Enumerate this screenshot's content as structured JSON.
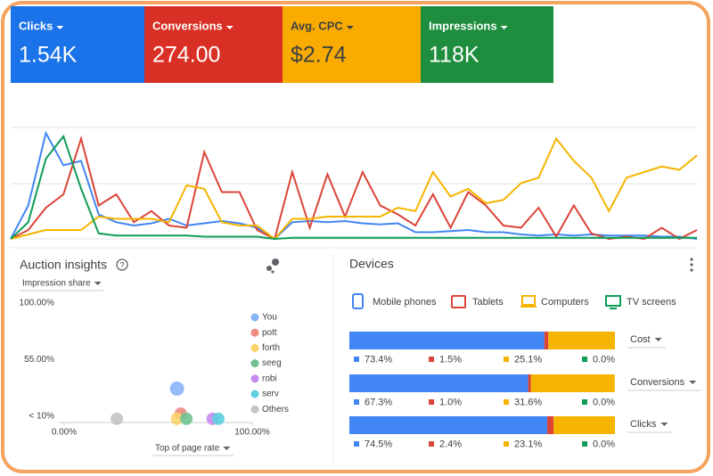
{
  "metrics": [
    {
      "label": "Clicks",
      "value": "1.54K",
      "color": "#1a73e8"
    },
    {
      "label": "Conversions",
      "value": "274.00",
      "color": "#d93025"
    },
    {
      "label": "Avg. CPC",
      "value": "$2.74",
      "color": "#f9ab00"
    },
    {
      "label": "Impressions",
      "value": "118K",
      "color": "#1e8e3e"
    }
  ],
  "trend": {
    "ylim": [
      0,
      100
    ],
    "series": [
      {
        "color": "#4285f4",
        "values": [
          0,
          30,
          95,
          66,
          70,
          22,
          15,
          12,
          14,
          18,
          12,
          14,
          16,
          14,
          10,
          0,
          15,
          16,
          15,
          16,
          14,
          13,
          14,
          6,
          6,
          7,
          8,
          6,
          6,
          4,
          3,
          4,
          3,
          4,
          3,
          3,
          3,
          2,
          2,
          0
        ]
      },
      {
        "color": "#db4437",
        "values": [
          0,
          8,
          28,
          40,
          90,
          30,
          40,
          15,
          25,
          12,
          10,
          78,
          42,
          42,
          8,
          0,
          60,
          10,
          58,
          20,
          60,
          30,
          22,
          12,
          40,
          10,
          42,
          30,
          12,
          10,
          28,
          2,
          30,
          5,
          0,
          2,
          0,
          10,
          0,
          8
        ]
      },
      {
        "color": "#f4b400",
        "values": [
          0,
          4,
          8,
          8,
          8,
          20,
          18,
          18,
          18,
          15,
          48,
          45,
          15,
          12,
          12,
          0,
          18,
          18,
          20,
          20,
          20,
          20,
          28,
          25,
          60,
          38,
          45,
          32,
          35,
          50,
          55,
          90,
          70,
          55,
          25,
          55,
          60,
          65,
          62,
          75
        ]
      },
      {
        "color": "#0f9d58",
        "values": [
          0,
          15,
          72,
          92,
          45,
          5,
          3,
          3,
          3,
          3,
          3,
          2,
          2,
          2,
          2,
          0,
          1,
          1,
          1,
          1,
          1,
          1,
          1,
          1,
          1,
          1,
          1,
          1,
          1,
          1,
          1,
          1,
          1,
          1,
          1,
          1,
          1,
          1,
          1,
          1
        ]
      }
    ]
  },
  "auction_insights": {
    "title": "Auction insights",
    "y_menu": "Impression share",
    "x_menu": "Top of page rate",
    "yticks": [
      {
        "value": 100,
        "label": "100.00%"
      },
      {
        "value": 55,
        "label": "55.00%"
      },
      {
        "value": 10,
        "label": "< 10%"
      }
    ],
    "xticks": [
      {
        "value": 0,
        "label": "0.00%"
      },
      {
        "value": 100,
        "label": "100.00%"
      }
    ],
    "series": [
      {
        "name": "You",
        "color": "#8ab4f8",
        "x": 60,
        "y": 32
      },
      {
        "name": "pott",
        "color": "#ee8a80",
        "x": 62,
        "y": 12
      },
      {
        "name": "forth",
        "color": "#fbd46d",
        "x": 60,
        "y": 8
      },
      {
        "name": "seeg",
        "color": "#6fc290",
        "x": 65,
        "y": 8
      },
      {
        "name": "robi",
        "color": "#c58af0",
        "x": 79,
        "y": 8
      },
      {
        "name": "serv",
        "color": "#5ecfe0",
        "x": 82,
        "y": 8
      },
      {
        "name": "Others",
        "color": "#c4c4c4",
        "x": 28,
        "y": 8
      }
    ]
  },
  "devices": {
    "title": "Devices",
    "legend": [
      {
        "name": "Mobile phones",
        "color": "#4285f4"
      },
      {
        "name": "Tablets",
        "color": "#db4437"
      },
      {
        "name": "Computers",
        "color": "#f4b400"
      },
      {
        "name": "TV screens",
        "color": "#0f9d58"
      }
    ],
    "rows": [
      {
        "menu": "Cost",
        "values": [
          73.4,
          1.5,
          25.1,
          0.0
        ],
        "value_labels": [
          "73.4%",
          "1.5%",
          "25.1%",
          "0.0%"
        ]
      },
      {
        "menu": "Conversions",
        "values": [
          67.3,
          1.0,
          31.6,
          0.0
        ],
        "value_labels": [
          "67.3%",
          "1.0%",
          "31.6%",
          "0.0%"
        ]
      },
      {
        "menu": "Clicks",
        "values": [
          74.5,
          2.4,
          23.1,
          0.0
        ],
        "value_labels": [
          "74.5%",
          "2.4%",
          "23.1%",
          "0.0%"
        ]
      }
    ]
  }
}
